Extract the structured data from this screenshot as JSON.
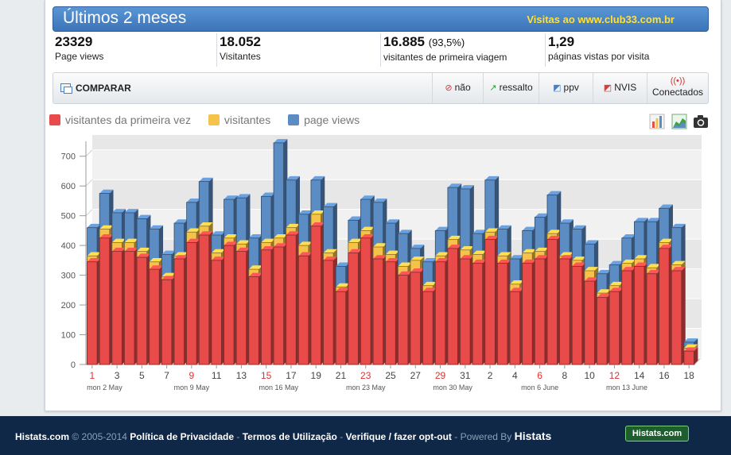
{
  "header": {
    "title": "Últimos 2 meses",
    "visits_label": "Visitas ao www.club33.com.br"
  },
  "stats": [
    {
      "value": "23329",
      "pct": "",
      "label": "Page views"
    },
    {
      "value": "18.052",
      "pct": "",
      "label": "Visitantes"
    },
    {
      "value": "16.885",
      "pct": "(93,5%)",
      "label": "visitantes de primeira viagem"
    },
    {
      "value": "1,29",
      "pct": "",
      "label": "páginas vistas por visita"
    }
  ],
  "toolbar": {
    "compare_label": "COMPARAR",
    "buttons": [
      {
        "label": "não",
        "icon": "no-icon"
      },
      {
        "label": "ressalto",
        "icon": "bounce-icon"
      },
      {
        "label": "ppv",
        "icon": "ppv-chart-icon"
      },
      {
        "label": "NVIS",
        "icon": "nvis-chart-icon"
      }
    ],
    "connected_label": "Conectados"
  },
  "legend": [
    {
      "label": "visitantes da primeira vez",
      "color": "#e94b4b"
    },
    {
      "label": "visitantes",
      "color": "#f5c34a"
    },
    {
      "label": "page views",
      "color": "#5b8cc4"
    }
  ],
  "chart_icons": [
    "bar-chart-icon",
    "area-chart-icon",
    "camera-icon"
  ],
  "chart_data": {
    "type": "bar",
    "stacked_overlay": true,
    "ylim": [
      0,
      750
    ],
    "yticks": [
      0,
      100,
      200,
      300,
      400,
      500,
      600,
      700
    ],
    "x_tick_labels": [
      {
        "index": 0,
        "label": "1",
        "weekend": true
      },
      {
        "index": 2,
        "label": "3",
        "weekend": false
      },
      {
        "index": 4,
        "label": "5",
        "weekend": false
      },
      {
        "index": 6,
        "label": "7",
        "weekend": false
      },
      {
        "index": 8,
        "label": "9",
        "weekend": true
      },
      {
        "index": 10,
        "label": "11",
        "weekend": false
      },
      {
        "index": 12,
        "label": "13",
        "weekend": false
      },
      {
        "index": 14,
        "label": "15",
        "weekend": true
      },
      {
        "index": 16,
        "label": "17",
        "weekend": false
      },
      {
        "index": 18,
        "label": "19",
        "weekend": false
      },
      {
        "index": 20,
        "label": "21",
        "weekend": false
      },
      {
        "index": 22,
        "label": "23",
        "weekend": true
      },
      {
        "index": 24,
        "label": "25",
        "weekend": false
      },
      {
        "index": 26,
        "label": "27",
        "weekend": false
      },
      {
        "index": 28,
        "label": "29",
        "weekend": true
      },
      {
        "index": 30,
        "label": "31",
        "weekend": false
      },
      {
        "index": 32,
        "label": "2",
        "weekend": false
      },
      {
        "index": 34,
        "label": "4",
        "weekend": false
      },
      {
        "index": 36,
        "label": "6",
        "weekend": true
      },
      {
        "index": 38,
        "label": "8",
        "weekend": false
      },
      {
        "index": 40,
        "label": "10",
        "weekend": false
      },
      {
        "index": 42,
        "label": "12",
        "weekend": true
      },
      {
        "index": 44,
        "label": "14",
        "weekend": false
      },
      {
        "index": 46,
        "label": "16",
        "weekend": false
      },
      {
        "index": 48,
        "label": "18",
        "weekend": false
      }
    ],
    "week_labels": [
      {
        "index": 1,
        "label": "mon 2 May"
      },
      {
        "index": 8,
        "label": "mon 9 May"
      },
      {
        "index": 15,
        "label": "mon 16 May"
      },
      {
        "index": 22,
        "label": "mon 23 May"
      },
      {
        "index": 29,
        "label": "mon 30 May"
      },
      {
        "index": 36,
        "label": "mon 6 June"
      },
      {
        "index": 43,
        "label": "mon 13 June"
      }
    ],
    "series": [
      {
        "name": "page views",
        "color": "#5b8cc4",
        "values": [
          460,
          575,
          510,
          510,
          490,
          455,
          370,
          475,
          545,
          615,
          435,
          555,
          560,
          425,
          565,
          745,
          620,
          505,
          620,
          530,
          330,
          485,
          555,
          545,
          475,
          440,
          390,
          345,
          450,
          595,
          590,
          440,
          620,
          455,
          355,
          450,
          495,
          570,
          475,
          455,
          405,
          305,
          335,
          425,
          480,
          480,
          525,
          460,
          75
        ]
      },
      {
        "name": "visitantes",
        "color": "#f5c34a",
        "values": [
          365,
          455,
          410,
          410,
          380,
          345,
          295,
          365,
          445,
          465,
          375,
          425,
          405,
          320,
          410,
          425,
          460,
          400,
          505,
          375,
          260,
          410,
          450,
          395,
          370,
          330,
          350,
          265,
          365,
          420,
          385,
          370,
          445,
          365,
          270,
          375,
          380,
          440,
          365,
          350,
          315,
          240,
          265,
          340,
          355,
          325,
          410,
          335,
          55
        ]
      },
      {
        "name": "visitantes da primeira vez",
        "color": "#e94b4b",
        "values": [
          345,
          425,
          380,
          380,
          360,
          320,
          285,
          355,
          410,
          435,
          350,
          400,
          380,
          295,
          385,
          395,
          435,
          365,
          465,
          350,
          245,
          375,
          425,
          355,
          345,
          300,
          310,
          245,
          345,
          390,
          355,
          340,
          420,
          340,
          245,
          340,
          355,
          420,
          355,
          330,
          280,
          225,
          245,
          315,
          330,
          305,
          390,
          315,
          45
        ]
      }
    ]
  },
  "footer": {
    "brand": "Histats.com",
    "copyright": "© 2005-2014",
    "privacy": "Política de Privacidade",
    "terms": "Termos de Utilização",
    "optout": "Verifique / fazer opt-out",
    "powered": "Powered By",
    "powered_brand": "Histats",
    "sep": "-",
    "logo_text": "Histats.com"
  }
}
